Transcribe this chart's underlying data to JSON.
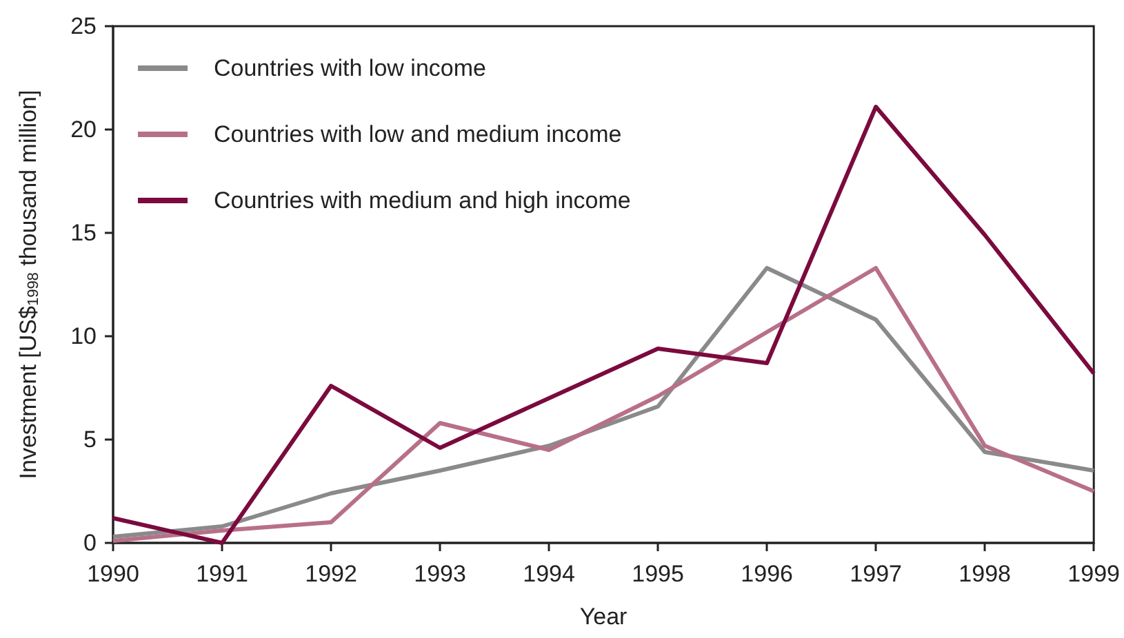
{
  "chart_data": {
    "type": "line",
    "xlabel": "Year",
    "ylabel": "Investment [US$$_{1998}$ thousand million]",
    "x": [
      1990,
      1991,
      1992,
      1993,
      1994,
      1995,
      1996,
      1997,
      1998,
      1999
    ],
    "series": [
      {
        "name": "Countries with low income",
        "color": "#8a8a8c",
        "values": [
          0.3,
          0.8,
          2.4,
          3.5,
          4.7,
          6.6,
          13.3,
          10.8,
          4.4,
          3.5
        ]
      },
      {
        "name": "Countries with low and medium income",
        "color": "#b87088",
        "values": [
          0.1,
          0.6,
          1.0,
          5.8,
          4.5,
          7.1,
          10.2,
          13.3,
          4.7,
          2.5
        ]
      },
      {
        "name": "Countries with medium and high income",
        "color": "#7b0a3e",
        "values": [
          1.2,
          0.0,
          7.6,
          4.6,
          7.0,
          9.4,
          8.7,
          21.1,
          14.9,
          8.2
        ]
      }
    ],
    "xlim": [
      1990,
      1999
    ],
    "xticks": [
      1990,
      1991,
      1992,
      1993,
      1994,
      1995,
      1996,
      1997,
      1998,
      1999
    ],
    "ylim": [
      0,
      25
    ],
    "yticks": [
      0,
      5,
      10,
      15,
      20,
      25
    ],
    "grid": false,
    "legend": "top left",
    "marker": "none",
    "line_style": "solid"
  }
}
